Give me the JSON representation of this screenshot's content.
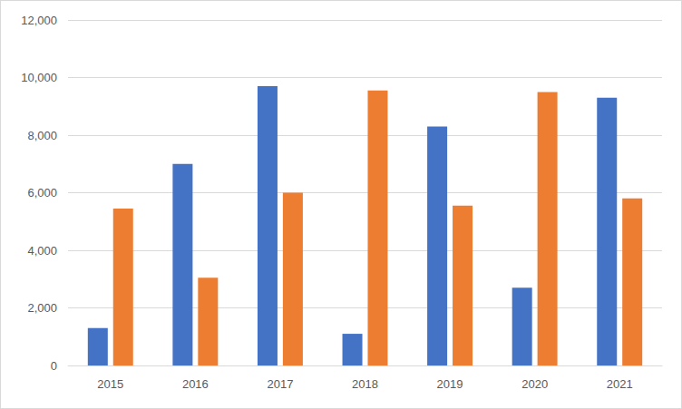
{
  "chart_data": {
    "type": "bar",
    "categories": [
      "2015",
      "2016",
      "2017",
      "2018",
      "2019",
      "2020",
      "2021"
    ],
    "series": [
      {
        "color": "#4472c4",
        "values": [
          1300,
          7000,
          9700,
          1100,
          8300,
          2700,
          9300
        ]
      },
      {
        "color": "#ed7d31",
        "values": [
          5450,
          3050,
          6000,
          9550,
          5550,
          9500,
          5800
        ]
      }
    ],
    "ylim": [
      0,
      12000
    ],
    "yticks": [
      0,
      {
        "value": 2000,
        "label": "2,000"
      },
      {
        "value": 4000,
        "label": "4,000"
      },
      {
        "value": 6000,
        "label": "6,000"
      },
      {
        "value": 8000,
        "label": "8,000"
      },
      {
        "value": 10000,
        "label": "10,000"
      },
      {
        "value": 12000,
        "label": "12,000"
      }
    ],
    "grid": true
  }
}
